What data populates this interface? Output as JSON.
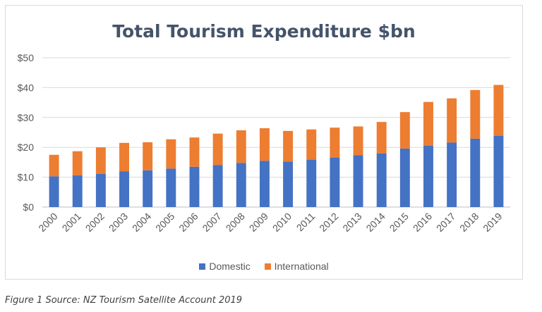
{
  "chart_data": {
    "type": "bar",
    "stacked": true,
    "title": "Total Tourism Expenditure $bn",
    "categories": [
      "2000",
      "2001",
      "2002",
      "2003",
      "2004",
      "2005",
      "2006",
      "2007",
      "2008",
      "2009",
      "2010",
      "2011",
      "2012",
      "2013",
      "2014",
      "2015",
      "2016",
      "2017",
      "2018",
      "2019"
    ],
    "series": [
      {
        "name": "Domestic",
        "color": "#4472c4",
        "values": [
          10.3,
          10.6,
          11.1,
          12.0,
          12.3,
          12.9,
          13.5,
          14.1,
          14.8,
          15.5,
          15.2,
          15.8,
          16.6,
          17.4,
          18.0,
          19.6,
          20.6,
          21.6,
          22.9,
          23.9
        ]
      },
      {
        "name": "International",
        "color": "#ed7d31",
        "values": [
          7.2,
          8.1,
          8.9,
          9.5,
          9.4,
          9.8,
          9.8,
          10.5,
          10.9,
          10.9,
          10.3,
          10.2,
          10.0,
          9.6,
          10.5,
          12.2,
          14.6,
          14.8,
          16.3,
          17.0
        ]
      }
    ],
    "ylim": [
      0,
      50
    ],
    "yticks": [
      "$0",
      "$10",
      "$20",
      "$30",
      "$40",
      "$50"
    ],
    "grid": true,
    "legend_position": "bottom"
  },
  "caption": "Figure 1 Source: NZ Tourism Satellite Account 2019"
}
